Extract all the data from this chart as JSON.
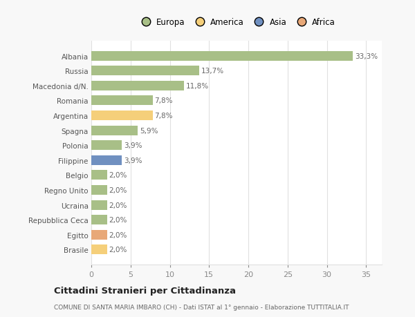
{
  "categories": [
    "Albania",
    "Russia",
    "Macedonia d/N.",
    "Romania",
    "Argentina",
    "Spagna",
    "Polonia",
    "Filippine",
    "Belgio",
    "Regno Unito",
    "Ucraina",
    "Repubblica Ceca",
    "Egitto",
    "Brasile"
  ],
  "values": [
    33.3,
    13.7,
    11.8,
    7.8,
    7.8,
    5.9,
    3.9,
    3.9,
    2.0,
    2.0,
    2.0,
    2.0,
    2.0,
    2.0
  ],
  "labels": [
    "33,3%",
    "13,7%",
    "11,8%",
    "7,8%",
    "7,8%",
    "5,9%",
    "3,9%",
    "3,9%",
    "2,0%",
    "2,0%",
    "2,0%",
    "2,0%",
    "2,0%",
    "2,0%"
  ],
  "colors": [
    "#a8bf87",
    "#a8bf87",
    "#a8bf87",
    "#a8bf87",
    "#f5cf7a",
    "#a8bf87",
    "#a8bf87",
    "#7090c0",
    "#a8bf87",
    "#a8bf87",
    "#a8bf87",
    "#a8bf87",
    "#e8a878",
    "#f5cf7a"
  ],
  "legend_labels": [
    "Europa",
    "America",
    "Asia",
    "Africa"
  ],
  "legend_colors": [
    "#a8bf87",
    "#f5cf7a",
    "#7090c0",
    "#e8a878"
  ],
  "title": "Cittadini Stranieri per Cittadinanza",
  "subtitle": "COMUNE DI SANTA MARIA IMBARO (CH) - Dati ISTAT al 1° gennaio - Elaborazione TUTTITALIA.IT",
  "xlim": [
    0,
    37
  ],
  "xticks": [
    0,
    5,
    10,
    15,
    20,
    25,
    30,
    35
  ],
  "background_color": "#f8f8f8",
  "bar_background": "#ffffff",
  "grid_color": "#e0e0e0"
}
